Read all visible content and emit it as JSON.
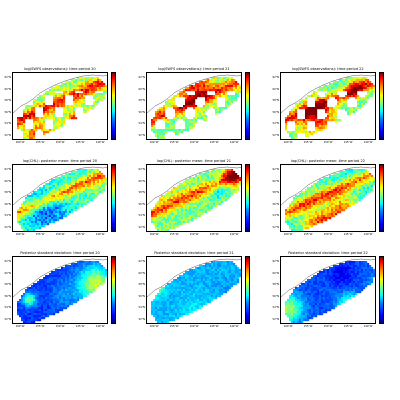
{
  "figure": {
    "colormap": [
      "#00007f",
      "#0000ff",
      "#007fff",
      "#00ffff",
      "#7fff7f",
      "#ffff00",
      "#ff7f00",
      "#ff0000",
      "#7f0000"
    ],
    "land_color": "#ffffff",
    "coast_color": "#555555"
  },
  "chart_data": [
    {
      "type": "heatmap",
      "title": "log(SWFS observations): time period 20",
      "ylabels": [
        "62°N",
        "60°N",
        "58°N",
        "56°N",
        "54°N",
        "52°N"
      ],
      "xlabels": [
        "160°W",
        "155°W",
        "150°W",
        "145°W",
        "140°W"
      ],
      "field": "obs",
      "seed": 3,
      "mean": 0.55
    },
    {
      "type": "heatmap",
      "title": "log(SWFS observations): time period 21",
      "ylabels": [
        "62°N",
        "60°N",
        "58°N",
        "56°N",
        "54°N",
        "52°N"
      ],
      "xlabels": [
        "160°W",
        "155°W",
        "150°W",
        "145°W",
        "140°W"
      ],
      "field": "obs",
      "seed": 7,
      "mean": 0.5
    },
    {
      "type": "heatmap",
      "title": "log(SWFS observations): time period 22",
      "ylabels": [
        "62°N",
        "60°N",
        "58°N",
        "56°N",
        "54°N",
        "52°N"
      ],
      "xlabels": [
        "160°W",
        "155°W",
        "150°W",
        "145°W",
        "140°W"
      ],
      "field": "obs",
      "seed": 11,
      "mean": 0.5
    },
    {
      "type": "heatmap",
      "title": "log(CHL): posterior mean: time period 20",
      "ylabels": [
        "62°N",
        "60°N",
        "58°N",
        "56°N",
        "54°N",
        "52°N"
      ],
      "xlabels": [
        "160°W",
        "155°W",
        "150°W",
        "145°W",
        "140°W"
      ],
      "field": "mean",
      "seed": 13,
      "mean": 0.45
    },
    {
      "type": "heatmap",
      "title": "log(CHL): posterior mean: time period 21",
      "ylabels": [
        "62°N",
        "60°N",
        "58°N",
        "56°N",
        "54°N",
        "52°N"
      ],
      "xlabels": [
        "160°W",
        "155°W",
        "150°W",
        "145°W",
        "140°W"
      ],
      "field": "mean",
      "seed": 17,
      "mean": 0.5
    },
    {
      "type": "heatmap",
      "title": "log(CHL): posterior mean: time period 22",
      "ylabels": [
        "62°N",
        "60°N",
        "58°N",
        "56°N",
        "54°N",
        "52°N"
      ],
      "xlabels": [
        "160°W",
        "155°W",
        "150°W",
        "145°W",
        "140°W"
      ],
      "field": "mean",
      "seed": 19,
      "mean": 0.42
    },
    {
      "type": "heatmap",
      "title": "Posterior standard deviation: time period 20",
      "ylabels": [
        "62°N",
        "60°N",
        "58°N",
        "56°N",
        "54°N",
        "52°N"
      ],
      "xlabels": [
        "160°W",
        "155°W",
        "150°W",
        "145°W",
        "140°W"
      ],
      "field": "sd",
      "seed": 23,
      "mean": 0.18
    },
    {
      "type": "heatmap",
      "title": "Posterior standard deviation: time period 21",
      "ylabels": [
        "62°N",
        "60°N",
        "58°N",
        "56°N",
        "54°N",
        "52°N"
      ],
      "xlabels": [
        "160°W",
        "155°W",
        "150°W",
        "145°W",
        "140°W"
      ],
      "field": "sd",
      "seed": 29,
      "mean": 0.3
    },
    {
      "type": "heatmap",
      "title": "Posterior standard deviation: time period 22",
      "ylabels": [
        "62°N",
        "60°N",
        "58°N",
        "56°N",
        "54°N",
        "52°N"
      ],
      "xlabels": [
        "160°W",
        "155°W",
        "150°W",
        "145°W",
        "140°W"
      ],
      "field": "sd",
      "seed": 31,
      "mean": 0.2
    }
  ]
}
